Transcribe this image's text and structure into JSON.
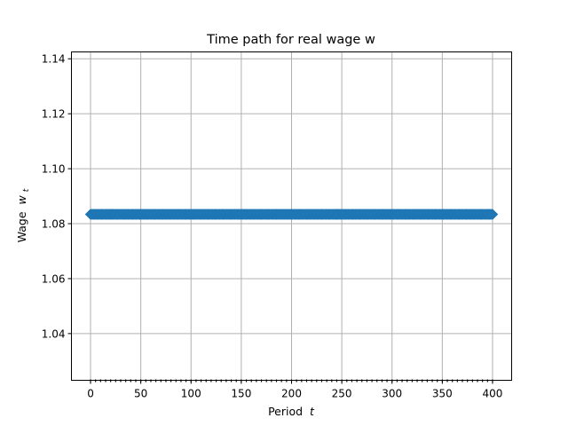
{
  "chart_data": {
    "type": "line",
    "title": "Time path for real wage w",
    "xlabel": "Period",
    "xlabel_var": "t",
    "ylabel": "Wage",
    "ylabel_var": "w",
    "ylabel_sub": "t",
    "xlim": [
      -19,
      419
    ],
    "ylim": [
      1.023,
      1.1425
    ],
    "xticks": [
      0,
      50,
      100,
      150,
      200,
      250,
      300,
      350,
      400
    ],
    "yticks": [
      1.04,
      1.06,
      1.08,
      1.1,
      1.12,
      1.14
    ],
    "ytick_labels": [
      "1.04",
      "1.06",
      "1.08",
      "1.10",
      "1.12",
      "1.14"
    ],
    "grid": true,
    "series": [
      {
        "color": "#1f77b4",
        "marker": "diamond",
        "x_start": 0,
        "x_end": 400,
        "x_step": 1,
        "value": 1.0834
      }
    ]
  }
}
